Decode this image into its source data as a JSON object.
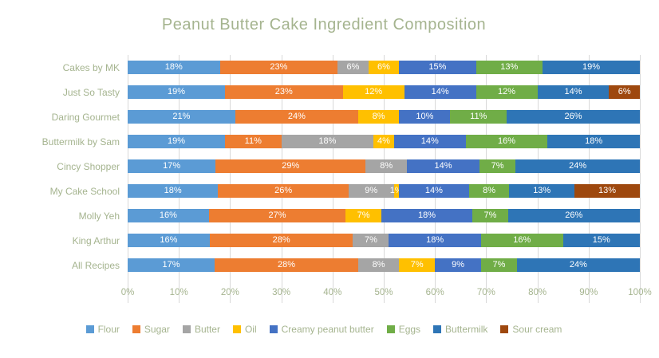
{
  "theme": {
    "text_color": "#a5b48f",
    "grid_color": "#d9d9d9",
    "data_label_color": "#ffffff",
    "background": "#ffffff"
  },
  "chart_data": {
    "type": "bar",
    "stacked": true,
    "orientation": "horizontal",
    "title": "Peanut Butter Cake Ingredient Composition",
    "categories": [
      "Cakes by MK",
      "Just So Tasty",
      "Daring Gourmet",
      "Buttermilk by Sam",
      "Cincy Shopper",
      "My Cake School",
      "Molly Yeh",
      "King Arthur",
      "All Recipes"
    ],
    "series": [
      {
        "name": "Flour",
        "color": "#5b9bd5",
        "values": [
          18,
          19,
          21,
          19,
          17,
          18,
          16,
          16,
          17
        ]
      },
      {
        "name": "Sugar",
        "color": "#ed7d31",
        "values": [
          23,
          23,
          24,
          11,
          29,
          26,
          27,
          28,
          28
        ]
      },
      {
        "name": "Butter",
        "color": "#a5a5a5",
        "values": [
          6,
          0,
          0,
          18,
          8,
          9,
          0,
          7,
          8
        ]
      },
      {
        "name": "Oil",
        "color": "#ffc000",
        "values": [
          6,
          12,
          8,
          4,
          0,
          1,
          7,
          0,
          7
        ]
      },
      {
        "name": "Creamy peanut butter",
        "color": "#4472c4",
        "values": [
          15,
          14,
          10,
          14,
          14,
          14,
          18,
          18,
          9
        ]
      },
      {
        "name": "Eggs",
        "color": "#70ad47",
        "values": [
          13,
          12,
          11,
          16,
          7,
          8,
          7,
          16,
          7
        ]
      },
      {
        "name": "Buttermilk",
        "color": "#2e75b6",
        "values": [
          19,
          14,
          26,
          18,
          24,
          13,
          26,
          15,
          24
        ]
      },
      {
        "name": "Sour cream",
        "color": "#9e480e",
        "values": [
          0,
          6,
          0,
          0,
          0,
          13,
          0,
          0,
          0
        ]
      }
    ],
    "x_ticks": [
      "0%",
      "10%",
      "20%",
      "30%",
      "40%",
      "50%",
      "60%",
      "70%",
      "80%",
      "90%",
      "100%"
    ],
    "xlim": [
      0,
      100
    ],
    "data_label_suffix": "%",
    "grid": true,
    "legend_position": "bottom"
  }
}
